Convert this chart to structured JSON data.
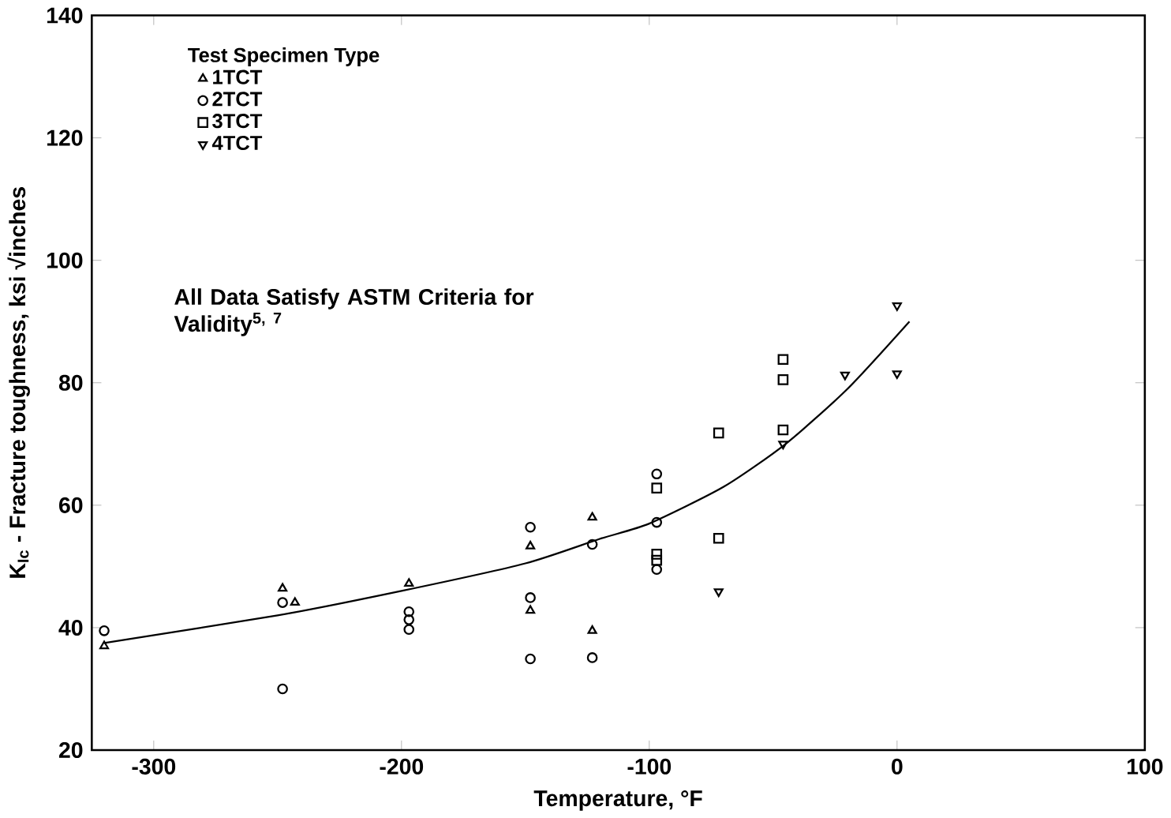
{
  "chart_data": {
    "type": "scatter",
    "xlabel": "Temperature, °F",
    "ylabel": "K$_{Ic}$ - Fracture toughness, ksi √inches",
    "legend_title": "Test Specimen Type",
    "legend": "top left",
    "annotations": [
      "All Data Satisfy ASTM Criteria for Validity$^{5, 7}$"
    ],
    "xlim": [
      -325,
      100
    ],
    "ylim": [
      20,
      140
    ],
    "xticks": [
      -300,
      -200,
      -100,
      0,
      100
    ],
    "yticks": [
      20,
      40,
      60,
      80,
      100,
      120,
      140
    ],
    "grid": false,
    "series": [
      {
        "name": "1TCT",
        "color": "#000000",
        "marker": "triangle",
        "x": [
          -320,
          -248,
          -243,
          -197,
          -148,
          -148,
          -123,
          -123
        ],
        "values": [
          37,
          46.4,
          44.1,
          47.2,
          53.3,
          42.8,
          58,
          39.5
        ]
      },
      {
        "name": "2TCT",
        "color": "#000000",
        "marker": "circle",
        "x": [
          -320,
          -248,
          -248,
          -197,
          -197,
          -197,
          -148,
          -148,
          -148,
          -123,
          -123,
          -97,
          -97,
          -97
        ],
        "values": [
          39.5,
          44.1,
          30,
          42.6,
          41.3,
          39.7,
          56.4,
          44.9,
          34.9,
          53.6,
          35.1,
          65.1,
          57.2,
          49.5
        ]
      },
      {
        "name": "3TCT",
        "color": "#000000",
        "marker": "square",
        "x": [
          -97,
          -97,
          -97,
          -72,
          -72,
          -46,
          -46,
          -46
        ],
        "values": [
          62.8,
          52,
          51,
          71.8,
          54.6,
          83.8,
          80.5,
          72.3
        ]
      },
      {
        "name": "4TCT",
        "color": "#000000",
        "marker": "triangle down",
        "x": [
          -72,
          -46,
          -21,
          0,
          0
        ],
        "values": [
          45.9,
          70,
          81.3,
          92.6,
          81.5
        ]
      },
      {
        "type": "line",
        "color": "#000000",
        "marker": "none",
        "x": [
          -320,
          -250,
          -200,
          -150,
          -120,
          -100,
          -70,
          -45,
          -20,
          5
        ],
        "values": [
          37.5,
          42,
          46,
          50.5,
          54.5,
          57,
          63,
          70,
          79,
          90
        ]
      }
    ]
  }
}
